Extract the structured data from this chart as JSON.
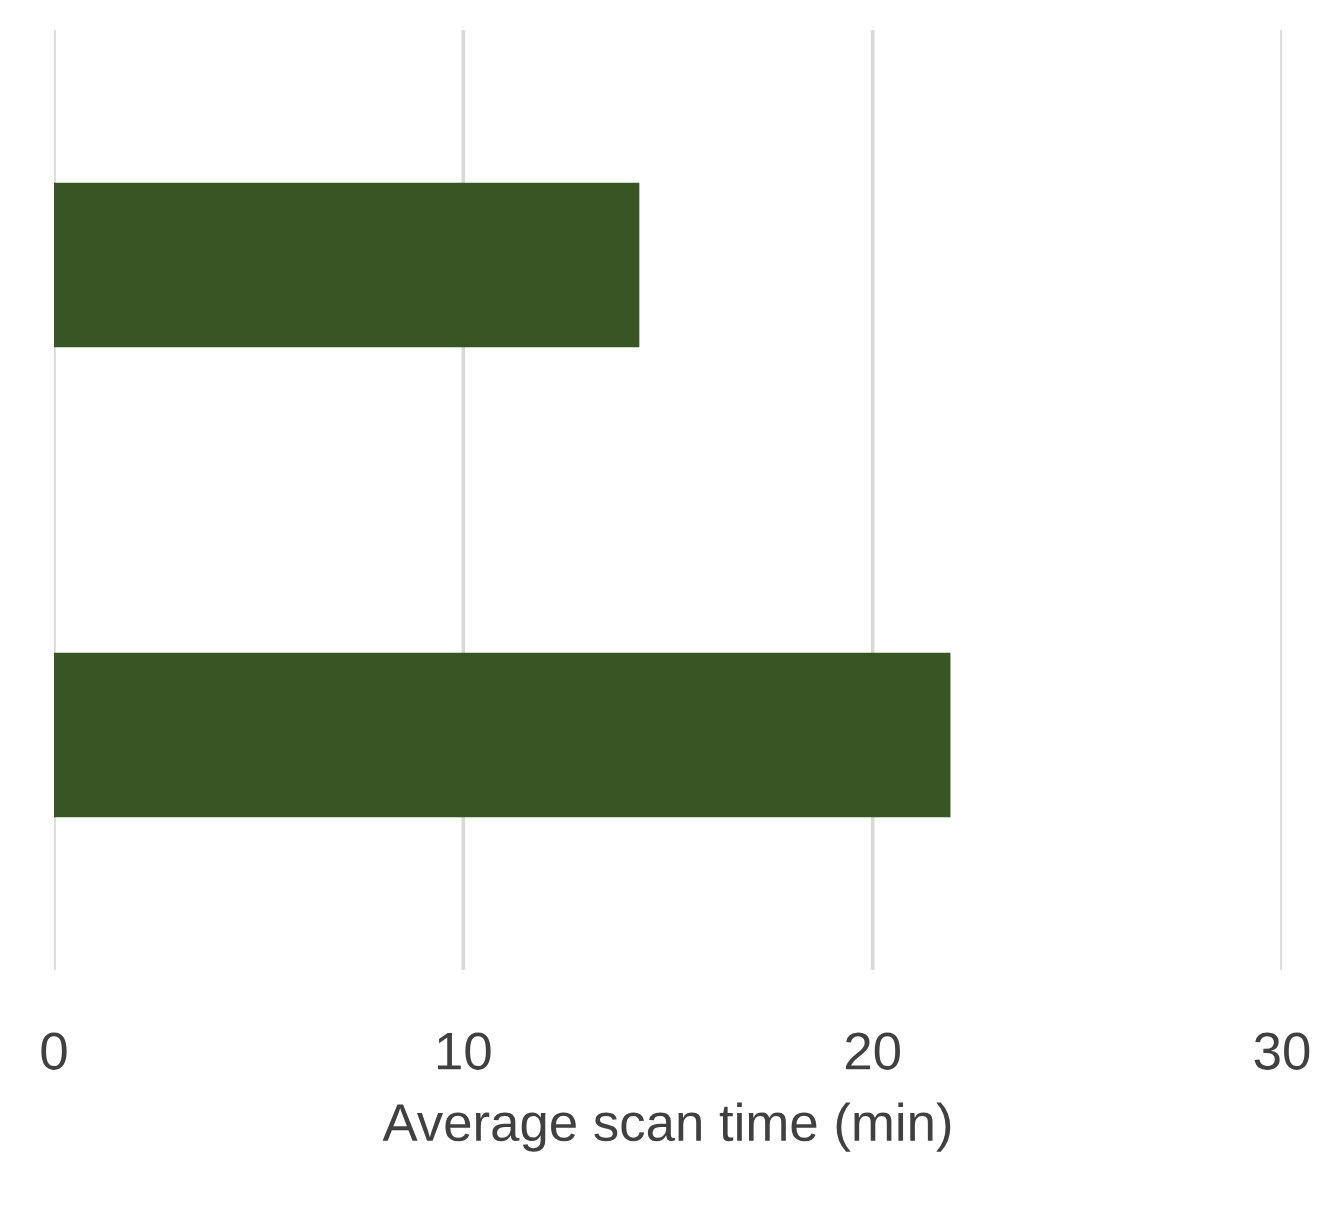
{
  "chart_data": {
    "type": "bar",
    "orientation": "horizontal",
    "categories": [
      null,
      null
    ],
    "values": [
      14.3,
      21.9
    ],
    "color": "#3a5524",
    "xlabel": "Average scan time (min)",
    "xlim": [
      0,
      30
    ],
    "xticks": [
      0,
      10,
      20,
      30
    ],
    "grid": "x",
    "legend": false
  }
}
